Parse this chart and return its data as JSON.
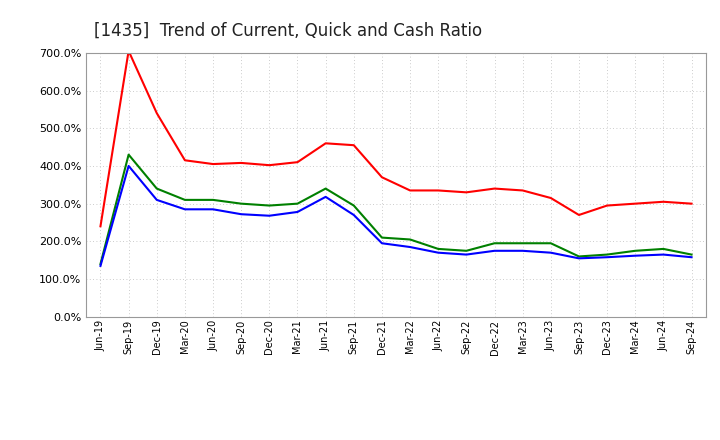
{
  "title": "[1435]  Trend of Current, Quick and Cash Ratio",
  "labels": [
    "Jun-19",
    "Sep-19",
    "Dec-19",
    "Mar-20",
    "Jun-20",
    "Sep-20",
    "Dec-20",
    "Mar-21",
    "Jun-21",
    "Sep-21",
    "Dec-21",
    "Mar-22",
    "Jun-22",
    "Sep-22",
    "Dec-22",
    "Mar-23",
    "Jun-23",
    "Sep-23",
    "Dec-23",
    "Mar-24",
    "Jun-24",
    "Sep-24"
  ],
  "current_ratio": [
    240,
    705,
    540,
    415,
    405,
    408,
    402,
    410,
    460,
    455,
    370,
    335,
    335,
    330,
    340,
    335,
    315,
    270,
    295,
    300,
    305,
    300
  ],
  "quick_ratio": [
    140,
    430,
    340,
    310,
    310,
    300,
    295,
    300,
    340,
    295,
    210,
    205,
    180,
    175,
    195,
    195,
    195,
    160,
    165,
    175,
    180,
    165
  ],
  "cash_ratio": [
    135,
    400,
    310,
    285,
    285,
    272,
    268,
    278,
    318,
    270,
    195,
    185,
    170,
    165,
    175,
    175,
    170,
    155,
    158,
    162,
    165,
    158
  ],
  "current_color": "#FF0000",
  "quick_color": "#008000",
  "cash_color": "#0000FF",
  "ylim": [
    0,
    700
  ],
  "yticks": [
    0,
    100,
    200,
    300,
    400,
    500,
    600,
    700
  ],
  "background_color": "#FFFFFF",
  "grid_color": "#BBBBBB",
  "title_fontsize": 12,
  "line_width": 1.5
}
